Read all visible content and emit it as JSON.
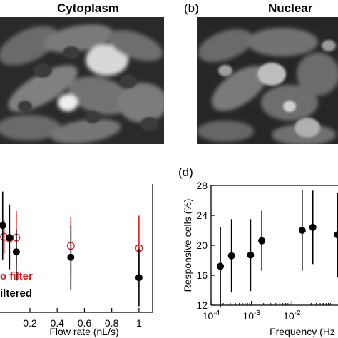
{
  "panels": {
    "a_title": "Cytoplasm",
    "b_tag": "(b)",
    "b_title": "Nuclear",
    "d_tag": "(d)"
  },
  "chart_data": [
    {
      "type": "scatter",
      "xlabel": "Flow rate (nL/s)",
      "ylabel": "",
      "xlim": [
        -0.03,
        1.1
      ],
      "xticks": [
        {
          "v": 0.2,
          "label": "0.2"
        },
        {
          "v": 0.4,
          "label": "0.4"
        },
        {
          "v": 0.6,
          "label": "0.6"
        },
        {
          "v": 0.8,
          "label": "0.8"
        },
        {
          "v": 1,
          "label": "1"
        }
      ],
      "ylim": [
        11,
        28
      ],
      "legend": {
        "placement": "bottom-left",
        "entries": [
          "o filter",
          "iltered"
        ],
        "colors": [
          "#d42020",
          "#000000"
        ]
      },
      "series": [
        {
          "marker": "open-circle",
          "color": "#d42020",
          "points": [
            {
              "x": 0.01,
              "y": 21.0,
              "lo": 18.8,
              "hi": 23.2
            },
            {
              "x": 0.05,
              "y": 20.8,
              "lo": 16.8,
              "hi": 24.8
            },
            {
              "x": 0.1,
              "y": 20.9,
              "lo": 17.2,
              "hi": 24.4
            },
            {
              "x": 0.5,
              "y": 19.8,
              "lo": 15.6,
              "hi": 23.6
            },
            {
              "x": 1.0,
              "y": 19.5,
              "lo": 15.2,
              "hi": 23.8
            }
          ]
        },
        {
          "marker": "filled-circle",
          "color": "#000000",
          "points": [
            {
              "x": 0.0,
              "y": 22.5,
              "lo": 18.0,
              "hi": 27.0
            },
            {
              "x": 0.05,
              "y": 20.9,
              "lo": 16.7,
              "hi": 25.3
            },
            {
              "x": 0.1,
              "y": 19.0,
              "lo": 15.2,
              "hi": 22.0
            },
            {
              "x": 0.5,
              "y": 18.3,
              "lo": 14.0,
              "hi": 22.6
            },
            {
              "x": 1.0,
              "y": 15.6,
              "lo": 11.8,
              "hi": 19.4
            }
          ]
        }
      ]
    },
    {
      "type": "scatter",
      "xlabel": "Frequency (Hz",
      "ylabel": "Responsive cells (%)",
      "xscale": "log",
      "xlim": [
        0.0001,
        0.15
      ],
      "ylim": [
        12,
        28
      ],
      "yticks": [
        12,
        16,
        20,
        24,
        28
      ],
      "xticks": [
        {
          "v": 0.0001,
          "base": "10",
          "exp": "-4"
        },
        {
          "v": 0.001,
          "base": "10",
          "exp": "-3"
        },
        {
          "v": 0.01,
          "base": "10",
          "exp": "-2"
        }
      ],
      "series": [
        {
          "marker": "filled-circle",
          "color": "#000000",
          "points": [
            {
              "x": 0.00017,
              "y": 17.2,
              "lo": 11.8,
              "hi": 22.4
            },
            {
              "x": 0.00032,
              "y": 18.6,
              "lo": 13.7,
              "hi": 23.5
            },
            {
              "x": 0.00095,
              "y": 18.7,
              "lo": 13.9,
              "hi": 23.5
            },
            {
              "x": 0.0018,
              "y": 20.6,
              "lo": 16.6,
              "hi": 24.6
            },
            {
              "x": 0.018,
              "y": 22.0,
              "lo": 16.6,
              "hi": 27.4
            },
            {
              "x": 0.033,
              "y": 22.4,
              "lo": 17.5,
              "hi": 27.3
            },
            {
              "x": 0.135,
              "y": 21.4,
              "lo": 15.8,
              "hi": 27.0
            }
          ]
        }
      ]
    }
  ]
}
